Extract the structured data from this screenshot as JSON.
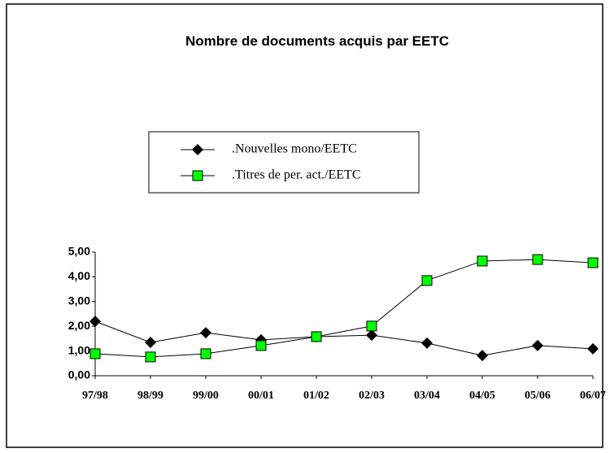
{
  "chart_data": {
    "type": "line",
    "title": "Nombre de documents acquis par EETC",
    "categories": [
      "97/98",
      "98/99",
      "99/00",
      "00/01",
      "01/02",
      "02/03",
      "03/04",
      "04/05",
      "05/06",
      "06/07"
    ],
    "series": [
      {
        "name": ".Nouvelles mono/EETC",
        "color": "#000000",
        "marker": "diamond",
        "values": [
          2.2,
          1.35,
          1.74,
          1.45,
          1.58,
          1.64,
          1.32,
          0.82,
          1.22,
          1.09
        ]
      },
      {
        "name": ".Titres de per. act./EETC",
        "color": "#00ff00",
        "marker": "square",
        "values": [
          0.89,
          0.76,
          0.89,
          1.22,
          1.58,
          2.01,
          3.85,
          4.64,
          4.7,
          4.57
        ]
      }
    ],
    "ylim": [
      0,
      5
    ],
    "yticks": [
      {
        "value": 0,
        "label": "0,00"
      },
      {
        "value": 1,
        "label": "1,00"
      },
      {
        "value": 2,
        "label": "2,00"
      },
      {
        "value": 3,
        "label": "3,00"
      },
      {
        "value": 4,
        "label": "4,00"
      },
      {
        "value": 5,
        "label": "5,00"
      }
    ],
    "grid": false
  }
}
